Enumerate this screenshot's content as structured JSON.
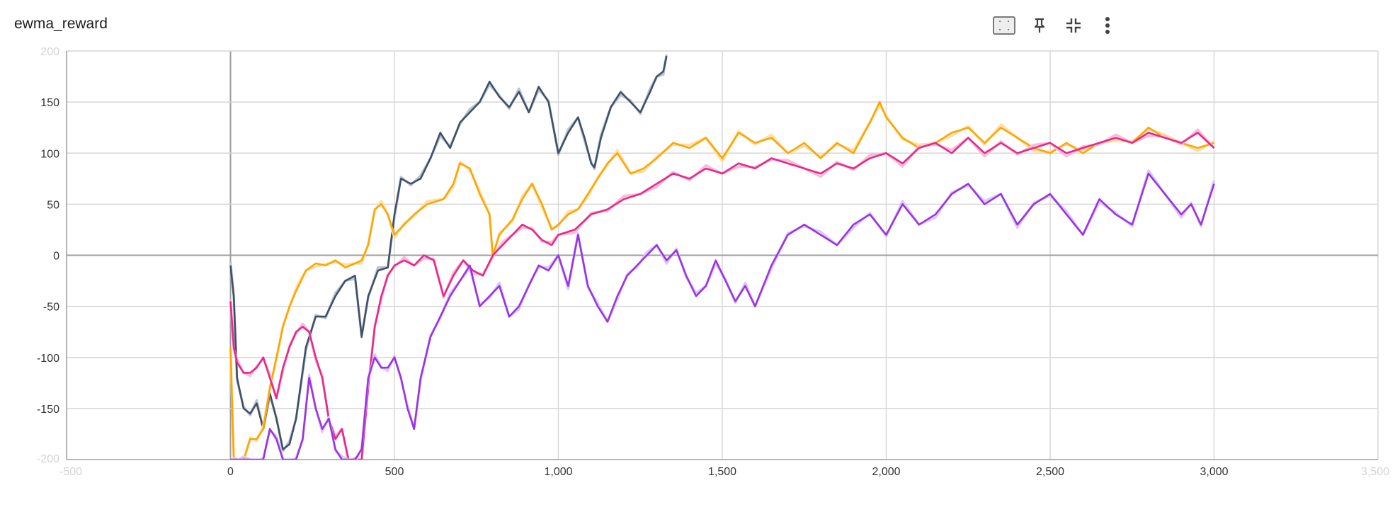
{
  "card": {
    "title": "ewma_reward",
    "toolbar": [
      {
        "name": "fit-domain-icon",
        "tooltip": "Fit domain to data"
      },
      {
        "name": "pin-icon",
        "tooltip": "Pin card"
      },
      {
        "name": "collapse-icon",
        "tooltip": "Collapse"
      },
      {
        "name": "more-vert-icon",
        "tooltip": "More"
      }
    ]
  },
  "colors": {
    "grid": "#d6d6d6",
    "axis": "#9e9e9e",
    "zero_line": "#9e9e9e"
  },
  "chart_data": {
    "type": "line",
    "title": "ewma_reward",
    "xlabel": "",
    "ylabel": "",
    "xlim": [
      -500,
      3500
    ],
    "ylim": [
      -200,
      200
    ],
    "x_ticks": [
      0,
      500,
      1000,
      1500,
      2000,
      2500,
      3000
    ],
    "x_tick_labels": [
      "0",
      "500",
      "1,000",
      "1,500",
      "2,000",
      "2,500",
      "3,000"
    ],
    "x_edge_labels": [
      "-500",
      "3,500"
    ],
    "y_ticks": [
      150,
      100,
      50,
      0,
      -50,
      -100,
      -150
    ],
    "y_tick_labels": [
      "150",
      "100",
      "50",
      "0",
      "-50",
      "-100",
      "-150"
    ],
    "y_edge_labels": [
      "200",
      "-200"
    ],
    "grid": true,
    "smoothing": "smoothed line over faint raw line",
    "series": [
      {
        "color": "#415068",
        "raw_color": "#b9c5d6",
        "x": [
          0,
          10,
          20,
          40,
          60,
          80,
          100,
          120,
          140,
          160,
          180,
          200,
          230,
          260,
          290,
          320,
          350,
          380,
          400,
          420,
          450,
          480,
          500,
          520,
          550,
          580,
          610,
          640,
          670,
          700,
          730,
          760,
          790,
          820,
          850,
          880,
          910,
          940,
          970,
          1000,
          1030,
          1060,
          1080,
          1100,
          1110,
          1130,
          1160,
          1190,
          1220,
          1250,
          1280,
          1300,
          1320,
          1330
        ],
        "y": [
          -10,
          -40,
          -120,
          -150,
          -155,
          -145,
          -170,
          -135,
          -160,
          -190,
          -185,
          -160,
          -90,
          -60,
          -60,
          -40,
          -25,
          -20,
          -80,
          -40,
          -15,
          -12,
          40,
          75,
          70,
          75,
          95,
          120,
          105,
          130,
          140,
          150,
          170,
          155,
          145,
          160,
          140,
          165,
          150,
          100,
          120,
          135,
          115,
          90,
          86,
          115,
          145,
          160,
          150,
          140,
          160,
          175,
          180,
          195
        ]
      },
      {
        "color": "#ffa500",
        "raw_color": "#fde0a8",
        "x": [
          0,
          10,
          20,
          40,
          60,
          80,
          100,
          120,
          140,
          160,
          180,
          200,
          230,
          260,
          290,
          320,
          350,
          380,
          400,
          420,
          440,
          460,
          480,
          500,
          530,
          560,
          600,
          650,
          680,
          700,
          730,
          760,
          790,
          800,
          820,
          860,
          890,
          920,
          950,
          980,
          1000,
          1030,
          1060,
          1090,
          1120,
          1150,
          1180,
          1220,
          1260,
          1300,
          1350,
          1400,
          1450,
          1500,
          1550,
          1600,
          1650,
          1700,
          1750,
          1800,
          1850,
          1900,
          1950,
          1980,
          2000,
          2050,
          2100,
          2150,
          2200,
          2250,
          2300,
          2350,
          2400,
          2450,
          2500,
          2550,
          2600,
          2650,
          2700,
          2750,
          2800,
          2850,
          2900,
          2950,
          3000
        ],
        "y": [
          -90,
          -200,
          -200,
          -200,
          -180,
          -180,
          -170,
          -130,
          -100,
          -70,
          -50,
          -35,
          -15,
          -8,
          -10,
          -5,
          -12,
          -8,
          -5,
          10,
          45,
          50,
          40,
          20,
          30,
          40,
          50,
          55,
          70,
          90,
          85,
          60,
          40,
          0,
          20,
          35,
          55,
          70,
          50,
          25,
          30,
          40,
          45,
          60,
          75,
          90,
          100,
          80,
          85,
          95,
          110,
          105,
          115,
          95,
          120,
          110,
          115,
          100,
          110,
          95,
          110,
          100,
          130,
          150,
          135,
          115,
          105,
          110,
          120,
          125,
          110,
          125,
          115,
          105,
          100,
          110,
          100,
          110,
          115,
          110,
          125,
          115,
          110,
          105,
          110
        ]
      },
      {
        "color": "#e7298a",
        "raw_color": "#f6bcd9",
        "x": [
          0,
          10,
          20,
          40,
          60,
          80,
          100,
          120,
          140,
          160,
          180,
          200,
          220,
          240,
          260,
          280,
          300,
          320,
          340,
          360,
          380,
          400,
          420,
          440,
          460,
          480,
          500,
          530,
          560,
          590,
          620,
          650,
          680,
          710,
          740,
          770,
          800,
          830,
          860,
          890,
          920,
          950,
          980,
          1000,
          1050,
          1100,
          1150,
          1200,
          1250,
          1300,
          1350,
          1400,
          1450,
          1500,
          1550,
          1600,
          1650,
          1700,
          1750,
          1800,
          1850,
          1900,
          1950,
          2000,
          2050,
          2100,
          2150,
          2200,
          2250,
          2300,
          2350,
          2400,
          2450,
          2500,
          2550,
          2600,
          2650,
          2700,
          2750,
          2800,
          2850,
          2900,
          2950,
          3000
        ],
        "y": [
          -45,
          -90,
          -105,
          -115,
          -115,
          -110,
          -100,
          -120,
          -140,
          -110,
          -90,
          -75,
          -70,
          -75,
          -100,
          -120,
          -160,
          -180,
          -170,
          -200,
          -200,
          -200,
          -130,
          -70,
          -40,
          -20,
          -10,
          -5,
          -10,
          0,
          -5,
          -40,
          -20,
          -5,
          -15,
          -20,
          0,
          10,
          20,
          30,
          25,
          15,
          10,
          20,
          25,
          40,
          45,
          55,
          60,
          70,
          80,
          75,
          85,
          80,
          90,
          85,
          95,
          90,
          85,
          80,
          90,
          85,
          95,
          100,
          90,
          105,
          110,
          100,
          115,
          100,
          110,
          100,
          105,
          110,
          100,
          105,
          110,
          115,
          110,
          120,
          115,
          110,
          120,
          105
        ]
      },
      {
        "color": "#9834e4",
        "raw_color": "#e0c8f6",
        "x": [
          0,
          10,
          20,
          40,
          60,
          80,
          100,
          120,
          140,
          160,
          180,
          200,
          220,
          240,
          260,
          280,
          300,
          320,
          340,
          360,
          380,
          400,
          420,
          440,
          460,
          480,
          500,
          520,
          540,
          560,
          580,
          610,
          640,
          670,
          700,
          730,
          760,
          790,
          820,
          850,
          880,
          910,
          940,
          970,
          1000,
          1030,
          1060,
          1090,
          1120,
          1150,
          1180,
          1210,
          1240,
          1270,
          1300,
          1330,
          1360,
          1390,
          1420,
          1450,
          1480,
          1510,
          1540,
          1570,
          1600,
          1650,
          1700,
          1750,
          1800,
          1850,
          1900,
          1950,
          2000,
          2050,
          2100,
          2150,
          2200,
          2250,
          2300,
          2350,
          2400,
          2450,
          2500,
          2550,
          2600,
          2650,
          2700,
          2750,
          2800,
          2850,
          2900,
          2930,
          2960,
          3000
        ],
        "y": [
          -200,
          -200,
          -200,
          -200,
          -200,
          -200,
          -200,
          -170,
          -180,
          -200,
          -200,
          -200,
          -180,
          -120,
          -150,
          -170,
          -160,
          -190,
          -200,
          -200,
          -200,
          -190,
          -120,
          -100,
          -110,
          -110,
          -100,
          -120,
          -150,
          -170,
          -120,
          -80,
          -60,
          -40,
          -25,
          -10,
          -50,
          -40,
          -30,
          -60,
          -50,
          -30,
          -10,
          -15,
          0,
          -30,
          20,
          -30,
          -50,
          -65,
          -40,
          -20,
          -10,
          0,
          10,
          -5,
          5,
          -20,
          -40,
          -30,
          -5,
          -25,
          -45,
          -30,
          -50,
          -10,
          20,
          30,
          20,
          10,
          30,
          40,
          20,
          50,
          30,
          40,
          60,
          70,
          50,
          60,
          30,
          50,
          60,
          40,
          20,
          55,
          40,
          30,
          80,
          60,
          40,
          50,
          30,
          70
        ]
      }
    ]
  }
}
